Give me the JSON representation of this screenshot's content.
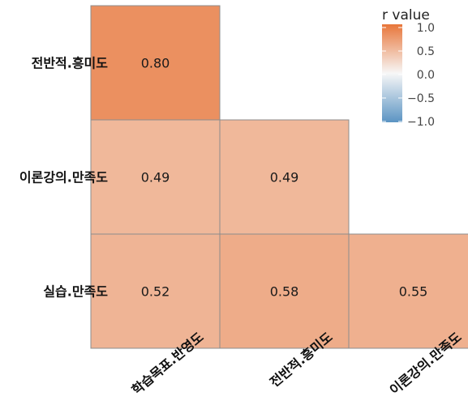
{
  "chart_data": {
    "type": "heatmap",
    "rows": [
      "전반적.흥미도",
      "이론강의.만족도",
      "실습.만족도"
    ],
    "columns": [
      "학습목표.반영도",
      "전반적.흥미도",
      "이론강의.만족도"
    ],
    "cells": [
      {
        "row": "전반적.흥미도",
        "col": "학습목표.반영도",
        "value": 0.8,
        "label": "0.80"
      },
      {
        "row": "이론강의.만족도",
        "col": "학습목표.반영도",
        "value": 0.49,
        "label": "0.49"
      },
      {
        "row": "이론강의.만족도",
        "col": "전반적.흥미도",
        "value": 0.49,
        "label": "0.49"
      },
      {
        "row": "실습.만족도",
        "col": "학습목표.반영도",
        "value": 0.52,
        "label": "0.52"
      },
      {
        "row": "실습.만족도",
        "col": "전반적.흥미도",
        "value": 0.58,
        "label": "0.58"
      },
      {
        "row": "실습.만족도",
        "col": "이론강의.만족도",
        "value": 0.55,
        "label": "0.55"
      }
    ],
    "legend": {
      "title": "r value",
      "range": [
        -1.0,
        1.0
      ],
      "ticks": [
        "1.0",
        "0.5",
        "0.0",
        "−0.5",
        "−1.0"
      ],
      "colors": {
        "high": "#e8763a",
        "mid": "#f7f7f7",
        "low": "#5b94c3"
      },
      "placement": "top-right"
    },
    "lower_triangle": true,
    "grid": false
  }
}
